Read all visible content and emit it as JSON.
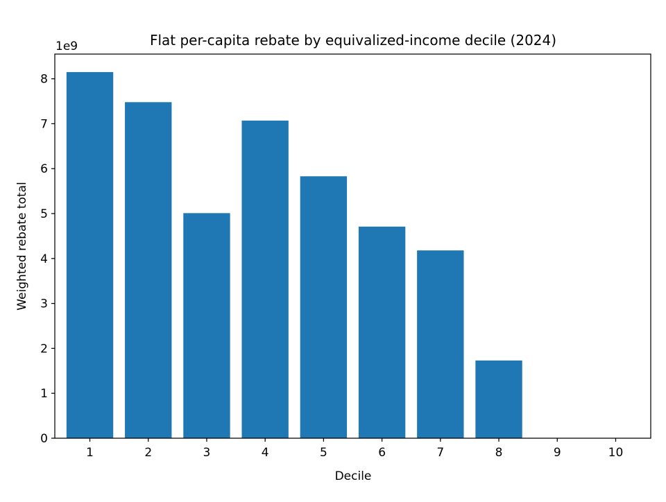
{
  "chart_data": {
    "type": "bar",
    "title": "Flat per-capita rebate by equivalized-income decile (2024)",
    "xlabel": "Decile",
    "ylabel": "Weighted rebate total",
    "y_multiplier_label": "1e9",
    "categories": [
      "1",
      "2",
      "3",
      "4",
      "5",
      "6",
      "7",
      "8",
      "9",
      "10"
    ],
    "values": [
      8150000000.0,
      7480000000.0,
      5010000000.0,
      7070000000.0,
      5830000000.0,
      4710000000.0,
      4180000000.0,
      1730000000.0,
      0,
      0
    ],
    "yticks": [
      "0",
      "1",
      "2",
      "3",
      "4",
      "5",
      "6",
      "7",
      "8"
    ],
    "ylim": [
      0,
      8550000000.0
    ],
    "grid": false,
    "legend": "none",
    "colors": {
      "bar": "#1f77b4",
      "axis": "#000000"
    }
  }
}
